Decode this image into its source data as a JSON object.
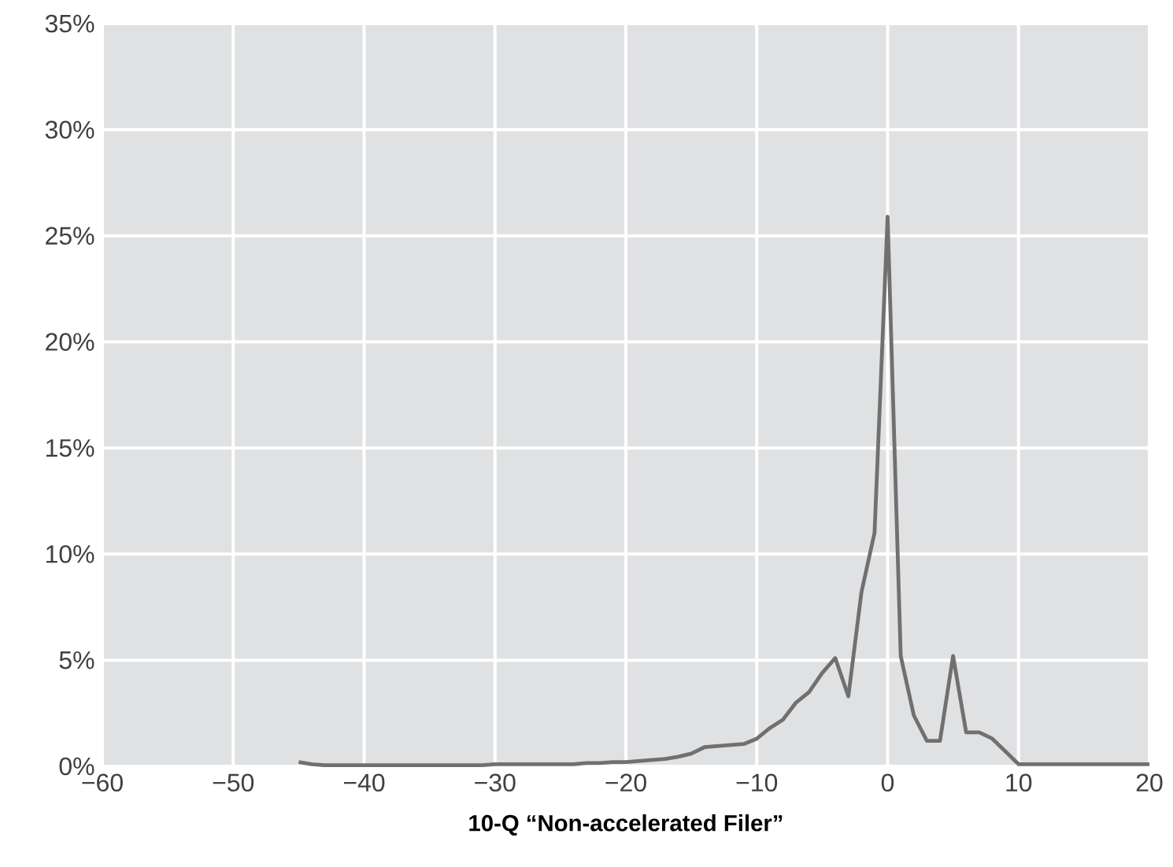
{
  "chart_data": {
    "type": "line",
    "xlabel": "10-Q “Non-accelerated Filer”",
    "x": [
      -45,
      -44,
      -43,
      -42,
      -41,
      -40,
      -39,
      -38,
      -37,
      -36,
      -35,
      -34,
      -33,
      -32,
      -31,
      -30,
      -29,
      -28,
      -27,
      -26,
      -25,
      -24,
      -23,
      -22,
      -21,
      -20,
      -19,
      -18,
      -17,
      -16,
      -15,
      -14,
      -13,
      -12,
      -11,
      -10,
      -9,
      -8,
      -7,
      -6,
      -5,
      -4,
      -3,
      -2,
      -1,
      0,
      1,
      2,
      3,
      4,
      5,
      6,
      7,
      8,
      9,
      10,
      11,
      12,
      13,
      14,
      15,
      16,
      17,
      18,
      19,
      20
    ],
    "values": [
      0.2,
      0.1,
      0.05,
      0.05,
      0.05,
      0.05,
      0.05,
      0.05,
      0.05,
      0.05,
      0.05,
      0.05,
      0.05,
      0.05,
      0.05,
      0.1,
      0.1,
      0.1,
      0.1,
      0.1,
      0.1,
      0.1,
      0.15,
      0.15,
      0.2,
      0.2,
      0.25,
      0.3,
      0.35,
      0.45,
      0.6,
      0.9,
      0.95,
      1.0,
      1.05,
      1.3,
      1.8,
      2.2,
      3.0,
      3.5,
      4.4,
      5.1,
      3.3,
      8.2,
      11.0,
      25.9,
      5.2,
      2.4,
      1.2,
      1.2,
      5.2,
      1.6,
      1.6,
      1.3,
      0.7,
      0.1,
      0.1,
      0.1,
      0.1,
      0.1,
      0.1,
      0.1,
      0.1,
      0.1,
      0.1,
      0.1
    ],
    "color": "#707070",
    "grid": true,
    "marker": "none",
    "line_style": "solid",
    "xlim": [
      -60,
      20
    ],
    "ylim": [
      0,
      35
    ],
    "xticks": [
      {
        "value": -60,
        "label": "−60"
      },
      {
        "value": -50,
        "label": "−50"
      },
      {
        "value": -40,
        "label": "−40"
      },
      {
        "value": -30,
        "label": "−30"
      },
      {
        "value": -20,
        "label": "−20"
      },
      {
        "value": -10,
        "label": "−10"
      },
      0,
      10,
      20
    ],
    "yticks": [
      {
        "value": 0,
        "label": "0%"
      },
      {
        "value": 5,
        "label": "5%"
      },
      {
        "value": 10,
        "label": "10%"
      },
      {
        "value": 15,
        "label": "15%"
      },
      {
        "value": 20,
        "label": "20%"
      },
      {
        "value": 25,
        "label": "25%"
      },
      {
        "value": 30,
        "label": "30%"
      },
      {
        "value": 35,
        "label": "35%"
      }
    ]
  }
}
